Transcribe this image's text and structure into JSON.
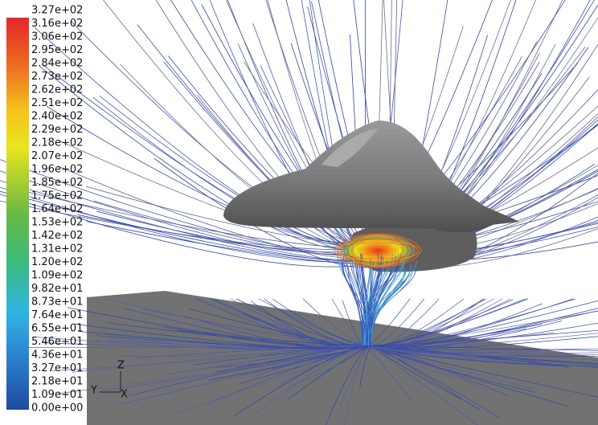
{
  "colorbar": {
    "labels": [
      "3.27e+02",
      "3.16e+02",
      "3.06e+02",
      "2.95e+02",
      "2.84e+02",
      "2.73e+02",
      "2.62e+02",
      "2.51e+02",
      "2.40e+02",
      "2.29e+02",
      "2.18e+02",
      "2.07e+02",
      "1.96e+02",
      "1.85e+02",
      "1.75e+02",
      "1.64e+02",
      "1.53e+02",
      "1.42e+02",
      "1.31e+02",
      "1.20e+02",
      "1.09e+02",
      "9.82e+01",
      "8.73e+01",
      "7.64e+01",
      "6.55e+01",
      "5.46e+01",
      "4.36e+01",
      "3.27e+01",
      "2.18e+01",
      "1.09e+01",
      "0.00e+00"
    ]
  },
  "axes": {
    "z": "Z",
    "y": "Y",
    "x": "X"
  }
}
